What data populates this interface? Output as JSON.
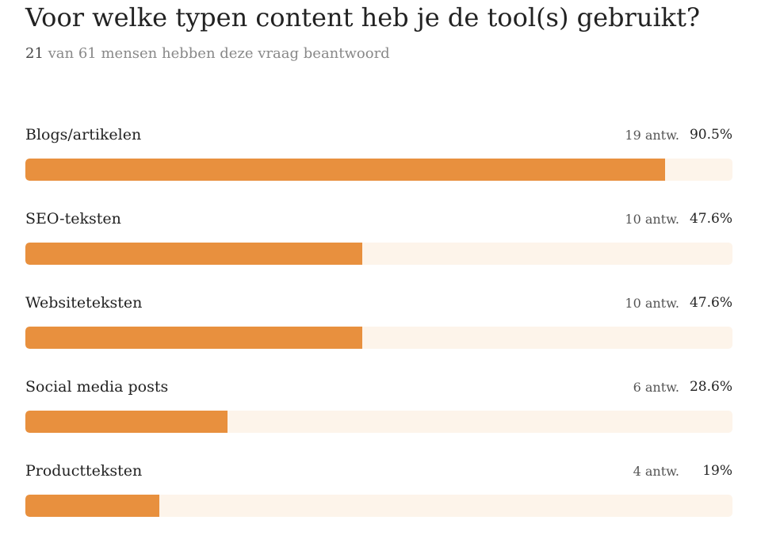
{
  "header": {
    "title": "Voor welke typen content heb je de tool(s) gebruikt?",
    "answered_count": "21",
    "answered_text": "van 61 mensen hebben deze vraag beantwoord"
  },
  "colors": {
    "bar_fill": "#e8903e",
    "bar_track": "#fdf4ea"
  },
  "chart_data": {
    "type": "bar",
    "orientation": "horizontal",
    "categories": [
      "Blogs/artikelen",
      "SEO-teksten",
      "Websiteteksten",
      "Social media posts",
      "Productteksten"
    ],
    "values": [
      90.5,
      47.6,
      47.6,
      28.6,
      19
    ],
    "answers": [
      "19 antw.",
      "10 antw.",
      "10 antw.",
      "6 antw.",
      "4 antw."
    ],
    "percent_labels": [
      "90.5%",
      "47.6%",
      "47.6%",
      "28.6%",
      "19%"
    ],
    "xlim": [
      0,
      100
    ],
    "grid": false
  }
}
